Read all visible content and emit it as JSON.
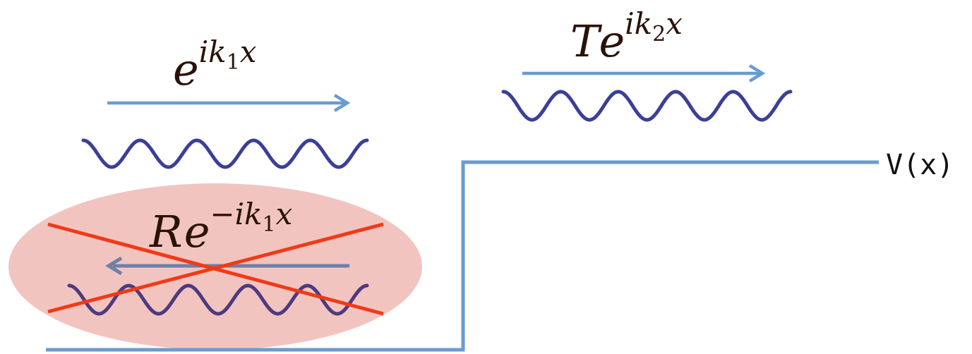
{
  "incident": {
    "base": "e",
    "exponent": "ik",
    "subscript": "1",
    "tail": "x"
  },
  "transmitted": {
    "coefficient": "T",
    "base": "e",
    "exponent": "ik",
    "subscript": "2",
    "tail": "x"
  },
  "reflected": {
    "coefficient": "R",
    "base": "e",
    "exponent": "−ik",
    "subscript": "1",
    "tail": "x"
  },
  "potential_label": "V(x)",
  "colors": {
    "arrow": "#6a9bd0",
    "wave": "#3a3f98",
    "potential": "#6a9bd0",
    "highlight": "#f2c4c0",
    "cross": "#f03a17",
    "text": "#2a1208"
  }
}
